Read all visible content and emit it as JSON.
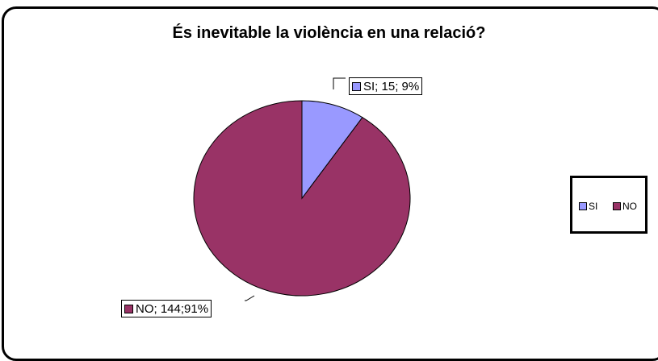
{
  "chart_data": {
    "type": "pie",
    "title": "És inevitable la violència en una relació?",
    "categories": [
      "SI",
      "NO"
    ],
    "values": [
      15,
      144
    ],
    "percentages": [
      "9%",
      "91%"
    ],
    "colors": [
      "#9999ff",
      "#993366"
    ],
    "data_labels": [
      "SI; 15; 9%",
      "NO; 144;91%"
    ],
    "legend": {
      "position": "right",
      "entries": [
        "SI",
        "NO"
      ]
    }
  }
}
